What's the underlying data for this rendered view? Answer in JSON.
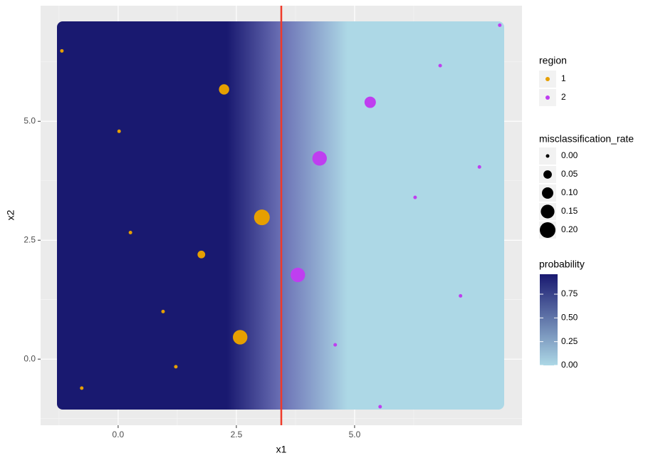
{
  "chart_data": {
    "type": "scatter",
    "x_label": "x1",
    "y_label": "x2",
    "xlim": [
      -1.64,
      8.54
    ],
    "ylim": [
      -1.39,
      7.43
    ],
    "xticks": [
      {
        "value": 0,
        "label": "0.0"
      },
      2.5,
      {
        "value": 5,
        "label": "5.0"
      }
    ],
    "yticks": [
      {
        "value": 0,
        "label": "0.0"
      },
      2.5,
      {
        "value": 5,
        "label": "5.0"
      }
    ],
    "grid": true,
    "vline": 3.45,
    "vline_color": "#f03a2a",
    "series": [
      {
        "name": "1",
        "color": "#e69f00",
        "x": [
          -1.19,
          2.24,
          0.02,
          3.04,
          0.26,
          1.76,
          0.95,
          2.58,
          1.22,
          -0.77
        ],
        "y": [
          6.48,
          5.67,
          4.79,
          2.98,
          2.66,
          2.2,
          1.0,
          0.46,
          -0.16,
          -0.61
        ],
        "sizes": [
          0,
          0.08,
          0,
          0.2,
          0,
          0.04,
          0,
          0.17,
          0,
          0
        ]
      },
      {
        "name": "2",
        "color": "#bf3ef0",
        "x": [
          8.07,
          6.81,
          5.33,
          4.26,
          7.64,
          6.28,
          3.8,
          7.24,
          4.59,
          5.54
        ],
        "y": [
          7.02,
          6.17,
          5.4,
          4.22,
          4.04,
          3.4,
          1.77,
          1.33,
          0.3,
          -1.0
        ],
        "sizes": [
          0,
          0,
          0.1,
          0.17,
          0,
          0,
          0.17,
          0,
          0,
          0
        ]
      }
    ],
    "color_legend_title": "region",
    "size_legend_title": "misclassification_rate",
    "size_legend": [
      {
        "value": 0,
        "label": "0.00"
      },
      0.05,
      {
        "value": 0.1,
        "label": "0.10"
      },
      0.15,
      {
        "value": 0.2,
        "label": "0.20"
      }
    ],
    "colorbar_title": "probability",
    "colorbar_lim": [
      0,
      0.96
    ],
    "colorbar_ticks": [
      {
        "value": 0,
        "label": "0.00"
      },
      0.25,
      {
        "value": 0.5,
        "label": "0.50"
      },
      0.75
    ],
    "low_color": "#add8e6",
    "high_color": "#191970"
  }
}
